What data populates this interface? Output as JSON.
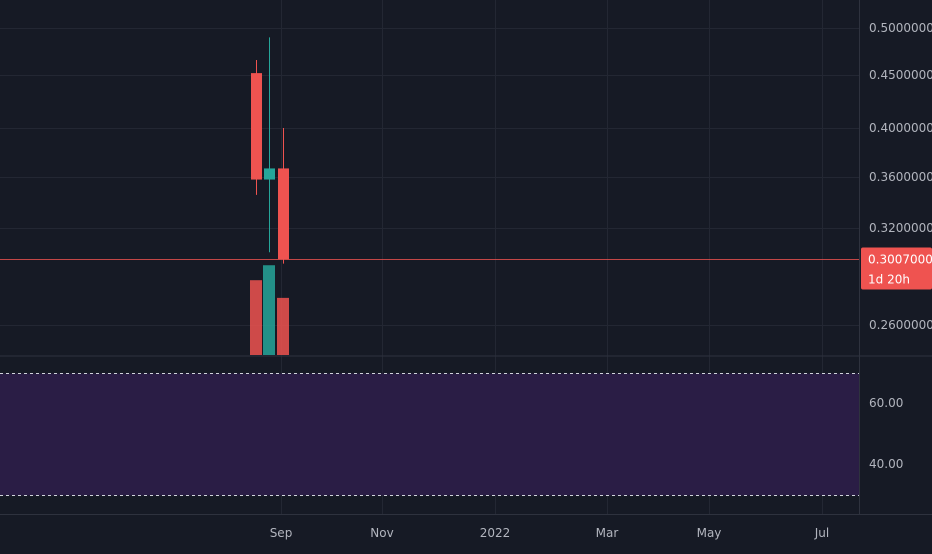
{
  "chart_data": [
    {
      "type": "candlestick",
      "title": "",
      "xlabel": "",
      "ylabel": "",
      "y_axis_labels": [
        "0.50000000",
        "0.45000000",
        "0.40000000",
        "0.36000000",
        "0.32000000",
        "0.26000000"
      ],
      "y_axis_values": [
        0.5,
        0.45,
        0.4,
        0.36,
        0.32,
        0.26
      ],
      "ylim": [
        0.23,
        0.515
      ],
      "x_axis_labels": [
        "Sep",
        "Nov",
        "2022",
        "Mar",
        "May",
        "Jul"
      ],
      "grid": true,
      "candles": [
        {
          "period": 1,
          "open": 0.452,
          "high": 0.466,
          "low": 0.346,
          "close": 0.358,
          "direction": "down"
        },
        {
          "period": 2,
          "open": 0.358,
          "high": 0.49,
          "low": 0.305,
          "close": 0.367,
          "direction": "up"
        },
        {
          "period": 3,
          "open": 0.367,
          "high": 0.4,
          "low": 0.298,
          "close": 0.3007,
          "direction": "down"
        }
      ],
      "volume": [
        {
          "period": 1,
          "value": 0.55,
          "direction": "down"
        },
        {
          "period": 2,
          "value": 0.66,
          "direction": "up"
        },
        {
          "period": 3,
          "value": 0.42,
          "direction": "down"
        }
      ],
      "last_price": {
        "value": 0.3007,
        "label": "0.30070000",
        "countdown": "1d 20h"
      },
      "colors": {
        "up": "#26a69a",
        "down": "#ef5350",
        "background": "#161a25",
        "grid": "#232733",
        "text": "#b2b5be",
        "price_line": "#ef5350"
      }
    },
    {
      "type": "line",
      "title": "",
      "y_axis_labels": [
        "60.00",
        "40.00"
      ],
      "y_axis_values": [
        60,
        40
      ],
      "ylim": [
        20,
        80
      ],
      "bands": {
        "upper": 70,
        "lower": 30
      },
      "colors": {
        "band_fill": "#2a1d45",
        "band_line": "#d1d4dc"
      }
    }
  ]
}
